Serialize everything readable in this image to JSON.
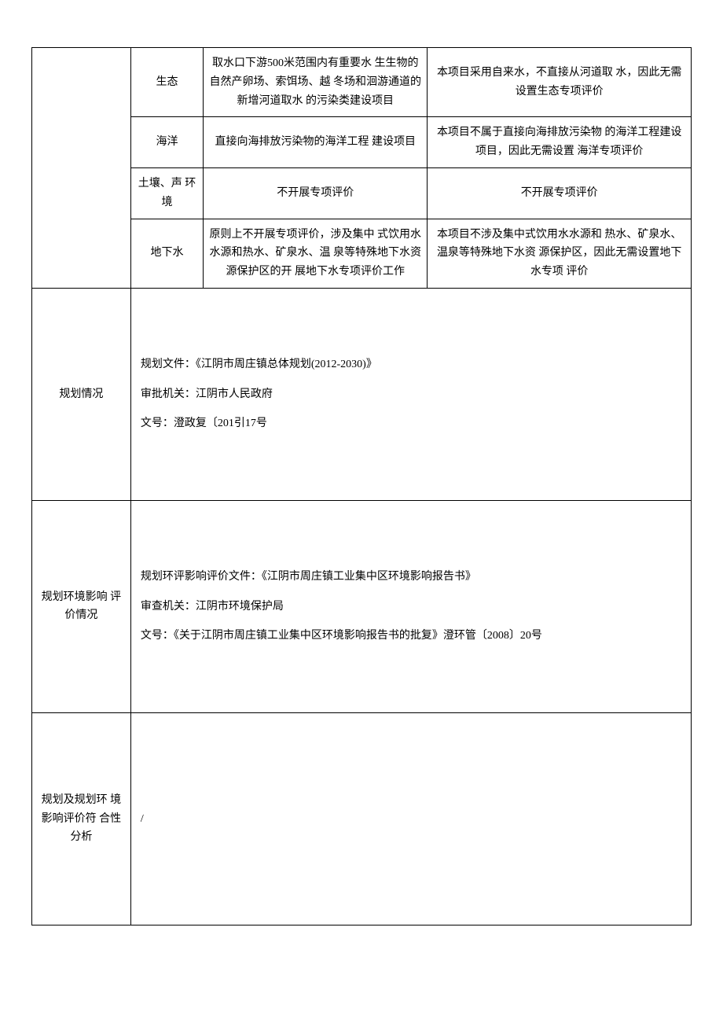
{
  "rows": {
    "r1": {
      "c2": "生态",
      "c3": "取水口下游500米范围内有重要水 生生物的自然产卵场、索饵场、越 冬场和洄游通道的新增河道取水 的污染类建设项目",
      "c4": "本项目采用自来水，不直接从河道取 水，因此无需设置生态专项评价"
    },
    "r2": {
      "c2": "海洋",
      "c3": "直接向海排放污染物的海洋工程 建设项目",
      "c4": "本项目不属于直接向海排放污染物 的海洋工程建设项目，因此无需设置 海洋专项评价"
    },
    "r3": {
      "c2": "土壤、声 环境",
      "c3": "不开展专项评价",
      "c4": "不开展专项评价"
    },
    "r4": {
      "c2": "地下水",
      "c3": "原则上不开展专项评价，涉及集中 式饮用水水源和热水、矿泉水、温 泉等特殊地下水资源保护区的开 展地下水专项评价工作",
      "c4": "本项目不涉及集中式饮用水水源和 热水、矿泉水、温泉等特殊地下水资 源保护区，因此无需设置地下水专项 评价"
    },
    "planning": {
      "label": "规划情况",
      "line1": "规划文件：《江阴市周庄镇总体规划(2012-2030)》",
      "line2": "审批机关：江阴市人民政府",
      "line3": "文号：澄政复〔201引17号"
    },
    "planningEnv": {
      "label": "规划环境影响 评价情况",
      "line1": "规划环评影响评价文件：《江阴市周庄镇工业集中区环境影响报告书》",
      "line2": "审查机关：江阴市环境保护局",
      "line3": "文号：《关于江阴市周庄镇工业集中区环境影响报告书的批复》澄环管〔2008〕20号"
    },
    "conformity": {
      "label": "规划及规划环 境影响评价符 合性分析",
      "content": "/"
    }
  }
}
